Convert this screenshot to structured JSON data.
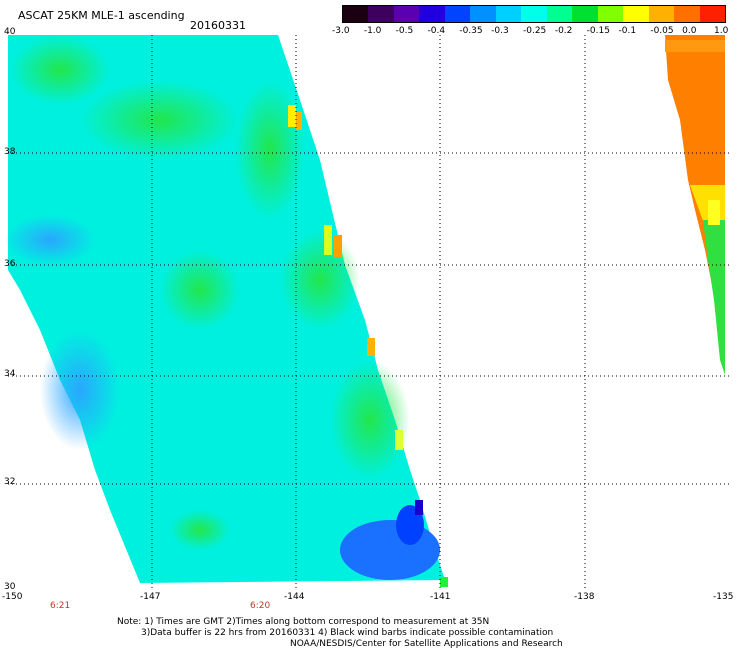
{
  "header": {
    "title": "ASCAT 25KM MLE-1 ascending",
    "date": "20160331"
  },
  "colorbar": {
    "labels": [
      "-3.0",
      "-1.0",
      "-0.5",
      "-0.4",
      "-0.35",
      "-0.3",
      "-0.25",
      "-0.2",
      "-0.15",
      "-0.1",
      "-0.05",
      "0.0",
      "1.0"
    ],
    "colors": [
      "#1a0010",
      "#3d005c",
      "#5a00b0",
      "#2000e0",
      "#0044ff",
      "#0090ff",
      "#00d0ff",
      "#00ffe8",
      "#00ff90",
      "#00e030",
      "#80ff00",
      "#ffff00",
      "#ffb000",
      "#ff7000",
      "#ff2000"
    ]
  },
  "map": {
    "lat_labels": [
      "40",
      "38",
      "36",
      "34",
      "32",
      "30"
    ],
    "lon_labels": [
      "-150",
      "-147",
      "-144",
      "-141",
      "-138",
      "-135"
    ],
    "time_labels": [
      "6:21",
      "6:20"
    ]
  },
  "notes": {
    "line1": "Note: 1) Times are GMT 2)Times along bottom correspond to measurement at 35N",
    "line2": "3)Data buffer is 22 hrs from 20160331 4) Black wind barbs indicate possible contamination",
    "line3": "NOAA/NESDIS/Center for Satellite Applications and Research"
  }
}
